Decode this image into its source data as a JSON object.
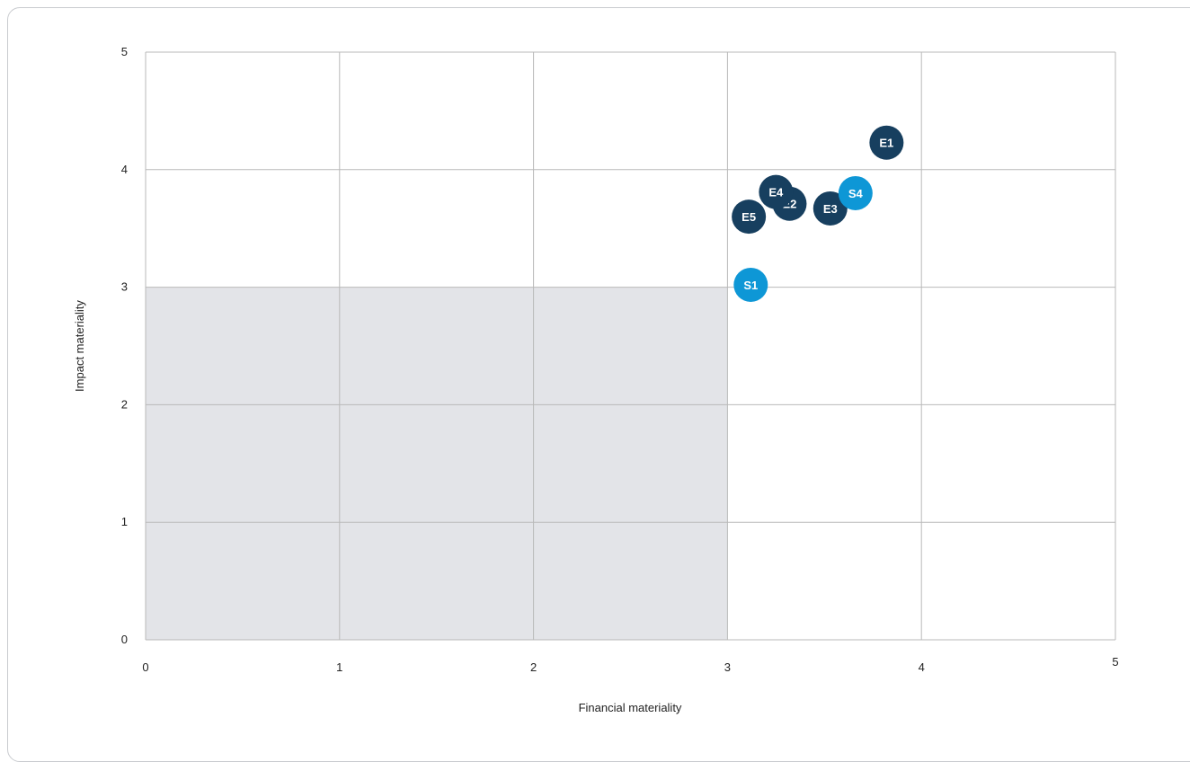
{
  "chart_data": {
    "type": "scatter",
    "title": "",
    "xlabel": "Financial materiality",
    "ylabel": "Impact materiality",
    "xlim": [
      0,
      5
    ],
    "ylim": [
      0,
      5
    ],
    "x_ticks": [
      "0",
      "1",
      "2",
      "3",
      "4",
      "5"
    ],
    "y_ticks": [
      "0",
      "1",
      "2",
      "3",
      "4",
      "5"
    ],
    "grid": true,
    "shaded_region": {
      "x": [
        0,
        3
      ],
      "y": [
        0,
        3
      ],
      "color": "#e3e4e8"
    },
    "colors": {
      "environment": "#173f5f",
      "social": "#0e97d6",
      "grid": "#b9b9b9"
    },
    "points": [
      {
        "label": "E1",
        "x": 3.82,
        "y": 4.23,
        "group": "environment"
      },
      {
        "label": "E2",
        "x": 3.32,
        "y": 3.71,
        "group": "environment"
      },
      {
        "label": "E3",
        "x": 3.53,
        "y": 3.67,
        "group": "environment"
      },
      {
        "label": "E4",
        "x": 3.25,
        "y": 3.81,
        "group": "environment"
      },
      {
        "label": "E5",
        "x": 3.11,
        "y": 3.6,
        "group": "environment"
      },
      {
        "label": "S4",
        "x": 3.66,
        "y": 3.8,
        "group": "social"
      },
      {
        "label": "S1",
        "x": 3.12,
        "y": 3.02,
        "group": "social"
      }
    ]
  }
}
